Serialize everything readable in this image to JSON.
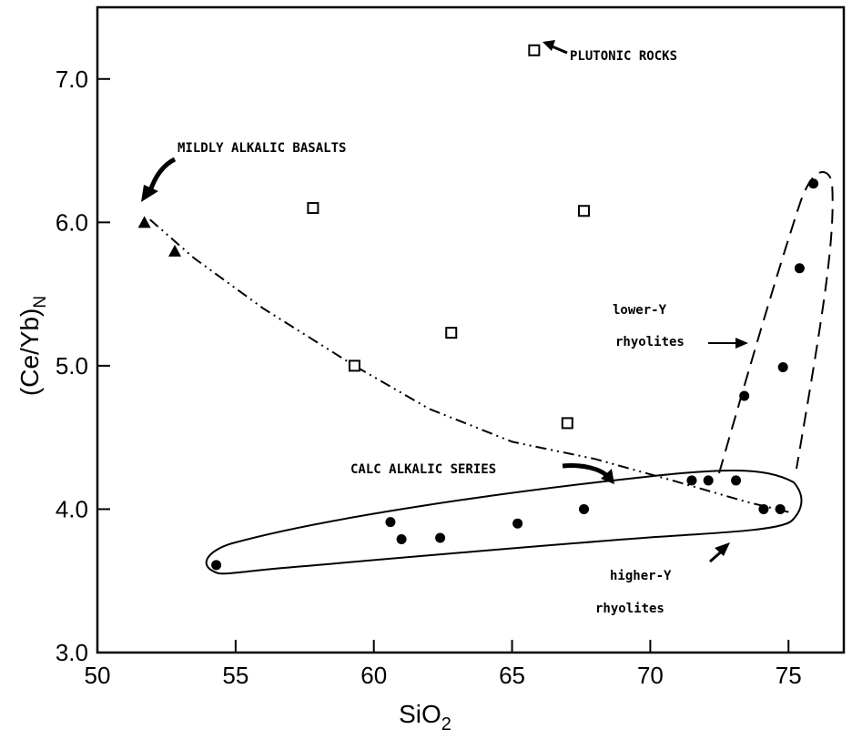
{
  "chart_data": {
    "type": "scatter",
    "title": "",
    "xlabel_base": "SiO",
    "xlabel_sub": "2",
    "ylabel_base": "(Ce/Yb)",
    "ylabel_sub": "N",
    "xlim": [
      50,
      77
    ],
    "ylim": [
      3.0,
      7.5
    ],
    "xticks": [
      "50",
      "55",
      "60",
      "65",
      "70",
      "75"
    ],
    "xtick_values": [
      50,
      55,
      60,
      65,
      70,
      75
    ],
    "yticks": [
      "3.0",
      "4.0",
      "5.0",
      "6.0",
      "7.0"
    ],
    "ytick_values": [
      3.0,
      4.0,
      5.0,
      6.0,
      7.0
    ],
    "grid": false,
    "series": [
      {
        "name": "",
        "marker": "filled-triangle",
        "points": [
          [
            51.7,
            6.0
          ],
          [
            52.8,
            5.8
          ]
        ]
      },
      {
        "name": "",
        "marker": "open-square",
        "points": [
          [
            65.8,
            7.2
          ],
          [
            57.8,
            6.1
          ],
          [
            67.6,
            6.08
          ],
          [
            62.8,
            5.23
          ],
          [
            59.3,
            5.0
          ],
          [
            67.0,
            4.6
          ]
        ]
      },
      {
        "name": "",
        "marker": "filled-circle",
        "points": [
          [
            54.3,
            3.61
          ],
          [
            60.6,
            3.91
          ],
          [
            61.0,
            3.79
          ],
          [
            62.4,
            3.8
          ],
          [
            65.2,
            3.9
          ],
          [
            67.6,
            4.0
          ],
          [
            71.5,
            4.2
          ],
          [
            72.1,
            4.2
          ],
          [
            73.1,
            4.2
          ],
          [
            74.1,
            4.0
          ],
          [
            74.7,
            4.0
          ],
          [
            73.4,
            4.79
          ],
          [
            74.8,
            4.99
          ],
          [
            75.4,
            5.68
          ],
          [
            75.9,
            6.27
          ]
        ]
      }
    ],
    "trend_line": {
      "style": "dash-dot-dot",
      "points": [
        [
          51.9,
          6.02
        ],
        [
          53.5,
          5.75
        ],
        [
          56,
          5.4
        ],
        [
          59.3,
          5.0
        ],
        [
          62,
          4.7
        ],
        [
          65,
          4.47
        ],
        [
          68,
          4.35
        ],
        [
          70.8,
          4.2
        ],
        [
          73.5,
          4.05
        ],
        [
          75,
          3.98
        ]
      ]
    },
    "annotations": [
      "MILDLY ALKALIC BASALTS",
      "PLUTONIC ROCKS",
      "lower-Y",
      "rhyolites",
      "CALC ALKALIC SERIES",
      "higher-Y",
      "rhyolites"
    ]
  }
}
